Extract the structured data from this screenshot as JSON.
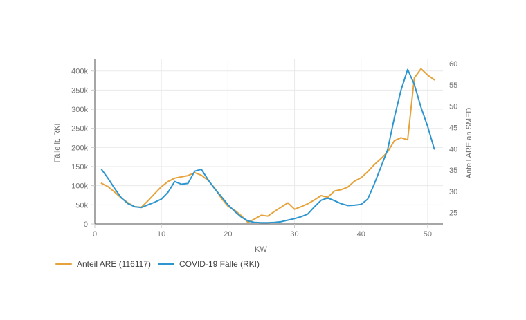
{
  "colors": {
    "background": "#ffffff",
    "grid": "#e9e9e9",
    "axis_line": "#4d4d4d",
    "tick_mark": "#c9c9c9",
    "tick_text": "#757575",
    "axis_title_text": "#6d6d6d",
    "legend_text": "#3f3f3f"
  },
  "chart_data": {
    "type": "line",
    "title": "",
    "xlabel": "KW",
    "ylabel_left": "Fälle lt. RKI",
    "ylabel_right": "Anteil ARE an SMED",
    "grid": true,
    "legend_position": "bottom-left",
    "x_range": [
      0,
      52.3
    ],
    "x_ticks": [
      0,
      10,
      20,
      30,
      40,
      50
    ],
    "left_range": [
      0,
      432000
    ],
    "left_ticks": [
      {
        "label": "0",
        "value": 0
      },
      {
        "label": "50k",
        "value": 50000
      },
      {
        "label": "100k",
        "value": 100000
      },
      {
        "label": "150k",
        "value": 150000
      },
      {
        "label": "200k",
        "value": 200000
      },
      {
        "label": "250k",
        "value": 250000
      },
      {
        "label": "300k",
        "value": 300000
      },
      {
        "label": "350k",
        "value": 350000
      },
      {
        "label": "400k",
        "value": 400000
      }
    ],
    "right_range": [
      22.35,
      61.15
    ],
    "right_ticks": [
      25,
      30,
      35,
      40,
      45,
      50,
      55,
      60
    ],
    "x": [
      1,
      2,
      3,
      4,
      5,
      6,
      7,
      8,
      9,
      10,
      11,
      12,
      13,
      14,
      15,
      16,
      17,
      18,
      19,
      20,
      21,
      22,
      23,
      24,
      25,
      26,
      27,
      28,
      29,
      30,
      31,
      32,
      33,
      34,
      35,
      36,
      37,
      38,
      39,
      40,
      41,
      42,
      43,
      44,
      45,
      46,
      47,
      48,
      49,
      50,
      51
    ],
    "series": [
      {
        "name": "Anteil ARE (116117)",
        "color": "#E6A33C",
        "axis": "right",
        "values": [
          31.9,
          31.1,
          29.8,
          28.4,
          27.3,
          26.4,
          26.3,
          27.8,
          29.5,
          31.1,
          32.3,
          33.1,
          33.4,
          33.7,
          34.4,
          33.8,
          32.6,
          30.8,
          28.4,
          26.5,
          25.6,
          24.3,
          22.7,
          23.5,
          24.4,
          24.2,
          25.3,
          26.3,
          27.3,
          25.8,
          26.4,
          27.1,
          28.0,
          29.0,
          28.6,
          30.1,
          30.4,
          31.0,
          32.4,
          33.2,
          34.6,
          36.3,
          37.7,
          39.3,
          41.9,
          42.6,
          42.1,
          56.6,
          58.8,
          57.3,
          56.2
        ]
      },
      {
        "name": "COVID-19 Fälle (RKI)",
        "color": "#2D96D0",
        "axis": "left",
        "values": [
          143000,
          119000,
          92000,
          68000,
          53000,
          45000,
          43000,
          50000,
          57000,
          65000,
          83000,
          111000,
          104000,
          106000,
          138000,
          143000,
          116000,
          92000,
          72000,
          50000,
          33000,
          18000,
          8000,
          4000,
          3000,
          3000,
          4000,
          6000,
          10000,
          14000,
          19000,
          26000,
          45000,
          62000,
          68000,
          61000,
          53000,
          48000,
          49000,
          51000,
          65000,
          105000,
          150000,
          195000,
          278000,
          350000,
          404000,
          365000,
          305000,
          255000,
          196000
        ]
      }
    ]
  }
}
